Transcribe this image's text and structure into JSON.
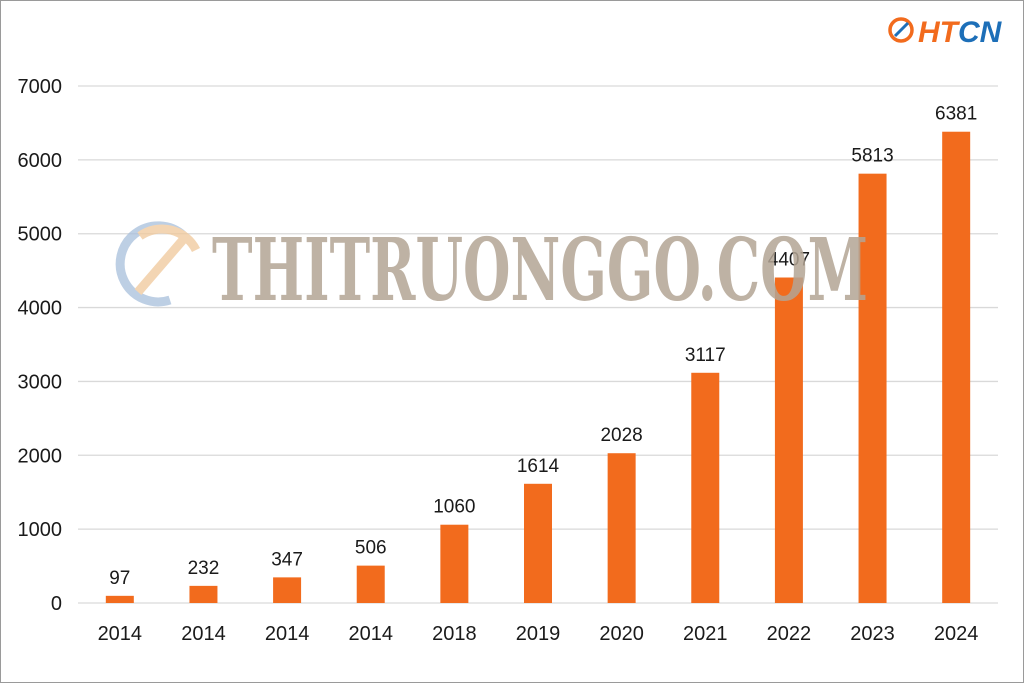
{
  "brand": {
    "logo_text": "HTCN",
    "colors": {
      "orange": "#f26b1d",
      "blue": "#1d6fb8"
    }
  },
  "watermark": {
    "text": "THITRUONGGO.COM",
    "icon": "compass-circle-icon"
  },
  "chart_data": {
    "type": "bar",
    "categories": [
      "2014",
      "2014",
      "2014",
      "2014",
      "2018",
      "2019",
      "2020",
      "2021",
      "2022",
      "2023",
      "2024"
    ],
    "values": [
      97,
      232,
      347,
      506,
      1060,
      1614,
      2028,
      3117,
      4407,
      5813,
      6381
    ],
    "title": "",
    "xlabel": "",
    "ylabel": "",
    "ylim": [
      0,
      7000
    ],
    "yticks": [
      0,
      1000,
      2000,
      3000,
      4000,
      5000,
      6000,
      7000
    ],
    "grid": true,
    "legend": "none",
    "bar_color": "#f26b1d",
    "grid_color": "#d9d9d9"
  }
}
